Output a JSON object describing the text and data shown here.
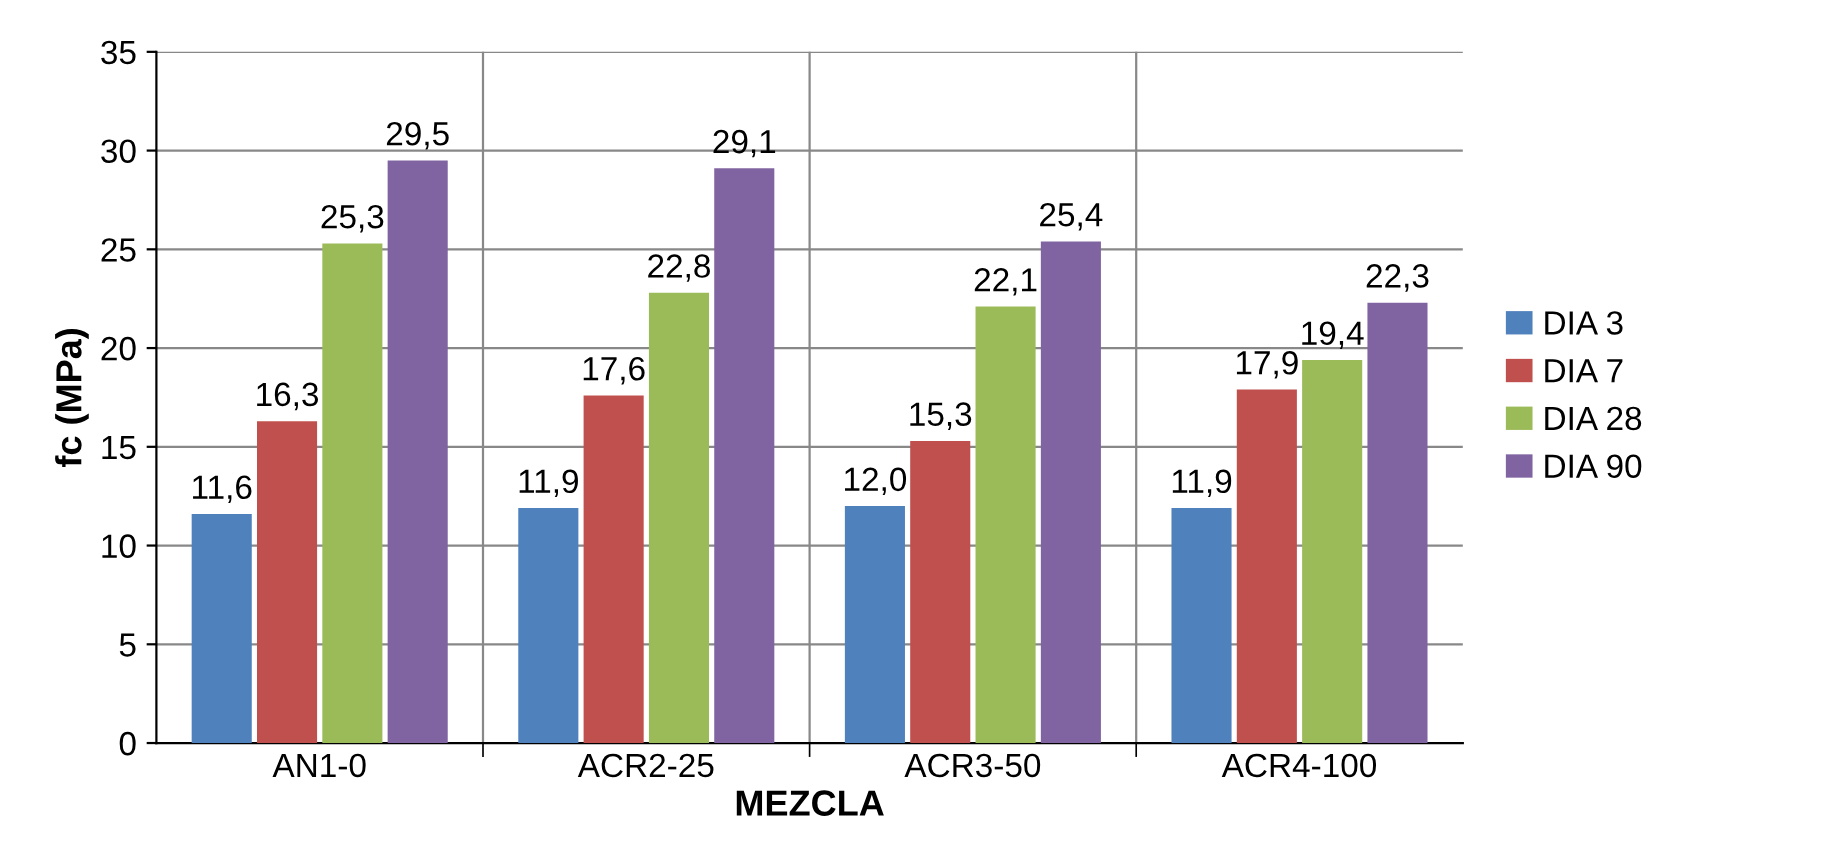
{
  "chart_data": {
    "type": "bar",
    "xlabel": "MEZCLA",
    "ylabel": "fc (MPa)",
    "categories": [
      "AN1-0",
      "ACR2-25",
      "ACR3-50",
      "ACR4-100"
    ],
    "series": [
      {
        "name": "DIA 3",
        "color": "#4f81bd",
        "values": [
          11.6,
          11.9,
          12.0,
          11.9
        ],
        "value_labels": [
          "11,6",
          "11,9",
          "12,0",
          "11,9"
        ]
      },
      {
        "name": "DIA 7",
        "color": "#c0504d",
        "values": [
          16.3,
          17.6,
          15.3,
          17.9
        ],
        "value_labels": [
          "16,3",
          "17,6",
          "15,3",
          "17,9"
        ]
      },
      {
        "name": "DIA 28",
        "color": "#9bbb59",
        "values": [
          25.3,
          22.8,
          22.1,
          19.4
        ],
        "value_labels": [
          "25,3",
          "22,8",
          "22,1",
          "19,4"
        ]
      },
      {
        "name": "DIA 90",
        "color": "#8064a2",
        "values": [
          29.5,
          29.1,
          25.4,
          22.3
        ],
        "value_labels": [
          "29,5",
          "29,1",
          "25,4",
          "22,3"
        ]
      }
    ],
    "ylim": [
      0,
      35
    ],
    "yticks": [
      0,
      5,
      10,
      15,
      20,
      25,
      30,
      35
    ],
    "grid": true,
    "legend": "right"
  }
}
